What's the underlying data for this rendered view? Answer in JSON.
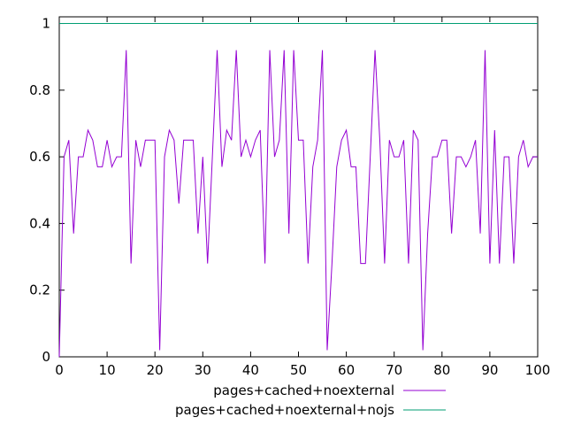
{
  "chart_data": {
    "type": "line",
    "title": "",
    "xlabel": "",
    "ylabel": "",
    "xlim": [
      0,
      100
    ],
    "ylim": [
      0,
      1.02
    ],
    "x_ticks": [
      0,
      10,
      20,
      30,
      40,
      50,
      60,
      70,
      80,
      90,
      100
    ],
    "y_ticks": [
      0,
      0.2,
      0.4,
      0.6,
      0.8,
      1
    ],
    "x_tick_labels": [
      "0",
      "10",
      "20",
      "30",
      "40",
      "50",
      "60",
      "70",
      "80",
      "90",
      "100"
    ],
    "y_tick_labels": [
      "0",
      "0.2",
      "0.4",
      "0.6",
      "0.8",
      "1"
    ],
    "grid": false,
    "legend_position": "bottom-center",
    "series": [
      {
        "name": "pages+cached+noexternal",
        "color": "#9400d3",
        "x": [
          0,
          1,
          2,
          3,
          4,
          5,
          6,
          7,
          8,
          9,
          10,
          11,
          12,
          13,
          14,
          15,
          16,
          17,
          18,
          19,
          20,
          21,
          22,
          23,
          24,
          25,
          26,
          27,
          28,
          29,
          30,
          31,
          32,
          33,
          34,
          35,
          36,
          37,
          38,
          39,
          40,
          41,
          42,
          43,
          44,
          45,
          46,
          47,
          48,
          49,
          50,
          51,
          52,
          53,
          54,
          55,
          56,
          57,
          58,
          59,
          60,
          61,
          62,
          63,
          64,
          65,
          66,
          67,
          68,
          69,
          70,
          71,
          72,
          73,
          74,
          75,
          76,
          77,
          78,
          79,
          80,
          81,
          82,
          83,
          84,
          85,
          86,
          87,
          88,
          89,
          90,
          91,
          92,
          93,
          94,
          95,
          96,
          97,
          98,
          99,
          100
        ],
        "values": [
          0.0,
          0.6,
          0.65,
          0.37,
          0.6,
          0.6,
          0.68,
          0.65,
          0.57,
          0.57,
          0.65,
          0.57,
          0.6,
          0.6,
          0.92,
          0.28,
          0.65,
          0.57,
          0.65,
          0.65,
          0.65,
          0.02,
          0.6,
          0.68,
          0.65,
          0.46,
          0.65,
          0.65,
          0.65,
          0.37,
          0.6,
          0.28,
          0.6,
          0.92,
          0.57,
          0.68,
          0.65,
          0.92,
          0.6,
          0.65,
          0.6,
          0.65,
          0.68,
          0.28,
          0.92,
          0.6,
          0.65,
          0.92,
          0.37,
          0.92,
          0.65,
          0.65,
          0.28,
          0.57,
          0.65,
          0.92,
          0.02,
          0.28,
          0.57,
          0.65,
          0.68,
          0.57,
          0.57,
          0.28,
          0.28,
          0.6,
          0.92,
          0.65,
          0.28,
          0.65,
          0.6,
          0.6,
          0.65,
          0.28,
          0.68,
          0.65,
          0.02,
          0.37,
          0.6,
          0.6,
          0.65,
          0.65,
          0.37,
          0.6,
          0.6,
          0.57,
          0.6,
          0.65,
          0.37,
          0.92,
          0.28,
          0.68,
          0.28,
          0.6,
          0.6,
          0.28,
          0.6,
          0.65,
          0.57,
          0.6,
          0.6
        ]
      },
      {
        "name": "pages+cached+noexternal+nojs",
        "color": "#009e73",
        "x": [
          0,
          100
        ],
        "values": [
          1,
          1
        ]
      }
    ]
  }
}
